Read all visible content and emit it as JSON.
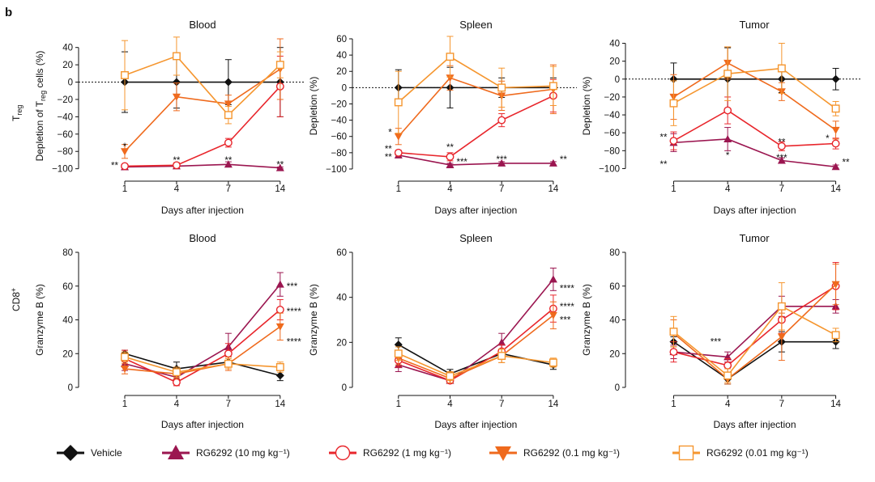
{
  "figure": {
    "panel_label": "b",
    "row_labels": [
      {
        "main": "T",
        "sub": "reg",
        "sup": ""
      },
      {
        "main": "CD8",
        "sub": "",
        "sup": "+"
      }
    ]
  },
  "colors": {
    "Vehicle": "#111111",
    "RG6292 (10 mg kg⁻¹)": "#9b1650",
    "RG6292 (1 mg kg⁻¹)": "#e8262c",
    "RG6292 (0.1 mg kg⁻¹)": "#ef6a1d",
    "RG6292 (0.01 mg kg⁻¹)": "#f5962f"
  },
  "legend": [
    {
      "label": "Vehicle",
      "marker": "diamond"
    },
    {
      "label": "RG6292 (10 mg kg⁻¹)",
      "marker": "triangle-up"
    },
    {
      "label": "RG6292 (1 mg kg⁻¹)",
      "marker": "circle-open"
    },
    {
      "label": "RG6292 (0.1 mg kg⁻¹)",
      "marker": "triangle-down"
    },
    {
      "label": "RG6292 (0.01 mg kg⁻¹)",
      "marker": "square-open"
    }
  ],
  "chart_data": [
    {
      "type": "line",
      "title": "Blood",
      "ylabel": {
        "pre": "Depletion of T",
        "sub": "reg",
        "post": " cells (%)"
      },
      "xlabel": "Days after injection",
      "categories": [
        "1",
        "4",
        "7",
        "14"
      ],
      "ylim": [
        -105,
        50
      ],
      "yticks": [
        40,
        20,
        0,
        -20,
        -40,
        -60,
        -80,
        -100
      ],
      "zero_line": true,
      "series": [
        {
          "name": "Vehicle",
          "values": [
            0,
            0,
            0,
            0
          ],
          "err": [
            35,
            30,
            26,
            40
          ]
        },
        {
          "name": "RG6292 (10 mg kg⁻¹)",
          "values": [
            -98,
            -97,
            -95,
            -99
          ],
          "err": [
            2,
            2,
            3,
            1
          ]
        },
        {
          "name": "RG6292 (1 mg kg⁻¹)",
          "values": [
            -97,
            -96,
            -70,
            -5
          ],
          "err": [
            2,
            3,
            5,
            35
          ]
        },
        {
          "name": "RG6292 (0.1 mg kg⁻¹)",
          "values": [
            -80,
            -17,
            -25,
            15
          ],
          "err": [
            8,
            16,
            10,
            35
          ]
        },
        {
          "name": "RG6292 (0.01 mg kg⁻¹)",
          "values": [
            8,
            30,
            -38,
            20
          ],
          "err": [
            40,
            22,
            10,
            15
          ]
        }
      ],
      "annotations": [
        {
          "text": "*",
          "x": "1",
          "y": -74
        },
        {
          "text": "**",
          "x": "1",
          "y": -96,
          "side": "left"
        },
        {
          "text": "**",
          "x": "4",
          "y": -90
        },
        {
          "text": "**",
          "x": "7",
          "y": -90
        },
        {
          "text": "**",
          "x": "14",
          "y": -95
        }
      ]
    },
    {
      "type": "line",
      "title": "Spleen",
      "ylabel": {
        "pre": "Depletion (%)",
        "sub": "",
        "post": ""
      },
      "xlabel": "Days after injection",
      "categories": [
        "1",
        "4",
        "7",
        "14"
      ],
      "ylim": [
        -105,
        60
      ],
      "yticks": [
        60,
        40,
        20,
        0,
        -20,
        -40,
        -60,
        -80,
        -100
      ],
      "zero_line": true,
      "series": [
        {
          "name": "Vehicle",
          "values": [
            0,
            0,
            0,
            0
          ],
          "err": [
            22,
            25,
            12,
            12
          ]
        },
        {
          "name": "RG6292 (10 mg kg⁻¹)",
          "values": [
            -83,
            -95,
            -93,
            -93
          ],
          "err": [
            3,
            2,
            2,
            2
          ]
        },
        {
          "name": "RG6292 (1 mg kg⁻¹)",
          "values": [
            -80,
            -85,
            -40,
            -10
          ],
          "err": [
            3,
            5,
            8,
            20
          ]
        },
        {
          "name": "RG6292 (0.1 mg kg⁻¹)",
          "values": [
            -60,
            12,
            -10,
            -2
          ],
          "err": [
            10,
            15,
            18,
            30
          ]
        },
        {
          "name": "RG6292 (0.01 mg kg⁻¹)",
          "values": [
            -18,
            38,
            0,
            2
          ],
          "err": [
            38,
            25,
            24,
            24
          ]
        }
      ],
      "annotations": [
        {
          "text": "*",
          "x": "1",
          "y": -55,
          "side": "left"
        },
        {
          "text": "**",
          "x": "1",
          "y": -75,
          "side": "left"
        },
        {
          "text": "**",
          "x": "1",
          "y": -85,
          "side": "left"
        },
        {
          "text": "**",
          "x": "4",
          "y": -73
        },
        {
          "text": "***",
          "x": "4",
          "y": -91,
          "side": "right"
        },
        {
          "text": "***",
          "x": "7",
          "y": -88
        },
        {
          "text": "**",
          "x": "14",
          "y": -88,
          "side": "right"
        }
      ]
    },
    {
      "type": "line",
      "title": "Tumor",
      "ylabel": {
        "pre": "Depletion (%)",
        "sub": "",
        "post": ""
      },
      "xlabel": "Days after injection",
      "categories": [
        "1",
        "4",
        "7",
        "14"
      ],
      "ylim": [
        -105,
        45
      ],
      "yticks": [
        40,
        20,
        0,
        -20,
        -40,
        -60,
        -80,
        -100
      ],
      "zero_line": true,
      "series": [
        {
          "name": "Vehicle",
          "values": [
            0,
            0,
            0,
            0
          ],
          "err": [
            18,
            35,
            15,
            12
          ]
        },
        {
          "name": "RG6292 (10 mg kg⁻¹)",
          "values": [
            -71,
            -67,
            -91,
            -98
          ],
          "err": [
            10,
            13,
            3,
            2
          ]
        },
        {
          "name": "RG6292 (1 mg kg⁻¹)",
          "values": [
            -69,
            -35,
            -75,
            -72
          ],
          "err": [
            10,
            15,
            5,
            6
          ]
        },
        {
          "name": "RG6292 (0.1 mg kg⁻¹)",
          "values": [
            -20,
            18,
            -14,
            -57
          ],
          "err": [
            25,
            18,
            10,
            10
          ]
        },
        {
          "name": "RG6292 (0.01 mg kg⁻¹)",
          "values": [
            -27,
            6,
            12,
            -33
          ],
          "err": [
            25,
            30,
            28,
            8
          ]
        }
      ],
      "annotations": [
        {
          "text": "**",
          "x": "1",
          "y": -65,
          "side": "left"
        },
        {
          "text": "**",
          "x": "1",
          "y": -95,
          "side": "left"
        },
        {
          "text": "*",
          "x": "4",
          "y": -85
        },
        {
          "text": "**",
          "x": "7",
          "y": -70
        },
        {
          "text": "***",
          "x": "7",
          "y": -88
        },
        {
          "text": "*",
          "x": "14",
          "y": -66,
          "side": "left"
        },
        {
          "text": "**",
          "x": "14",
          "y": -93,
          "side": "right"
        }
      ]
    },
    {
      "type": "line",
      "title": "Blood",
      "ylabel": {
        "pre": "Granzyme B (%)",
        "sub": "",
        "post": ""
      },
      "xlabel": "Days after injection",
      "categories": [
        "1",
        "4",
        "7",
        "14"
      ],
      "ylim": [
        0,
        80
      ],
      "yticks": [
        80,
        60,
        40,
        20,
        0
      ],
      "zero_line": false,
      "series": [
        {
          "name": "Vehicle",
          "values": [
            20,
            11,
            15,
            7
          ],
          "err": [
            2,
            4,
            3,
            3
          ]
        },
        {
          "name": "RG6292 (10 mg kg⁻¹)",
          "values": [
            14,
            6,
            24,
            61
          ],
          "err": [
            4,
            3,
            8,
            7
          ]
        },
        {
          "name": "RG6292 (1 mg kg⁻¹)",
          "values": [
            17,
            3,
            20,
            46
          ],
          "err": [
            5,
            2,
            6,
            6
          ]
        },
        {
          "name": "RG6292 (0.1 mg kg⁻¹)",
          "values": [
            11,
            8,
            14,
            36
          ],
          "err": [
            3,
            3,
            4,
            8
          ]
        },
        {
          "name": "RG6292 (0.01 mg kg⁻¹)",
          "values": [
            18,
            9,
            14,
            12
          ],
          "err": [
            3,
            3,
            3,
            3
          ]
        }
      ],
      "annotations": [
        {
          "text": "***",
          "x": "14",
          "y": 60,
          "side": "right"
        },
        {
          "text": "****",
          "x": "14",
          "y": 45,
          "side": "right"
        },
        {
          "text": "****",
          "x": "14",
          "y": 27,
          "side": "right"
        }
      ]
    },
    {
      "type": "line",
      "title": "Spleen",
      "ylabel": {
        "pre": "Granzyme B (%)",
        "sub": "",
        "post": ""
      },
      "xlabel": "Days after injection",
      "categories": [
        "1",
        "4",
        "7",
        "14"
      ],
      "ylim": [
        0,
        60
      ],
      "yticks": [
        60,
        40,
        20,
        0
      ],
      "zero_line": false,
      "series": [
        {
          "name": "Vehicle",
          "values": [
            19,
            6,
            15,
            10
          ],
          "err": [
            3,
            2,
            2,
            2
          ]
        },
        {
          "name": "RG6292 (10 mg kg⁻¹)",
          "values": [
            10,
            3,
            20,
            48
          ],
          "err": [
            3,
            1,
            4,
            5
          ]
        },
        {
          "name": "RG6292 (1 mg kg⁻¹)",
          "values": [
            12,
            3,
            16,
            35
          ],
          "err": [
            3,
            1,
            3,
            6
          ]
        },
        {
          "name": "RG6292 (0.1 mg kg⁻¹)",
          "values": [
            13,
            4,
            14,
            32
          ],
          "err": [
            3,
            2,
            3,
            6
          ]
        },
        {
          "name": "RG6292 (0.01 mg kg⁻¹)",
          "values": [
            15,
            5,
            14,
            11
          ],
          "err": [
            3,
            2,
            3,
            2
          ]
        }
      ],
      "annotations": [
        {
          "text": "****",
          "x": "14",
          "y": 44,
          "side": "right"
        },
        {
          "text": "****",
          "x": "14",
          "y": 36,
          "side": "right"
        },
        {
          "text": "***",
          "x": "14",
          "y": 30,
          "side": "right"
        }
      ]
    },
    {
      "type": "line",
      "title": "Tumor",
      "ylabel": {
        "pre": "Granzyme B (%)",
        "sub": "",
        "post": ""
      },
      "xlabel": "Days after injection",
      "categories": [
        "1",
        "4",
        "7",
        "14"
      ],
      "ylim": [
        0,
        80
      ],
      "yticks": [
        80,
        60,
        40,
        20,
        0
      ],
      "zero_line": false,
      "series": [
        {
          "name": "Vehicle",
          "values": [
            27,
            5,
            27,
            27
          ],
          "err": [
            3,
            3,
            6,
            4
          ]
        },
        {
          "name": "RG6292 (10 mg kg⁻¹)",
          "values": [
            21,
            18,
            48,
            48
          ],
          "err": [
            4,
            3,
            6,
            4
          ]
        },
        {
          "name": "RG6292 (1 mg kg⁻¹)",
          "values": [
            21,
            13,
            40,
            60
          ],
          "err": [
            6,
            4,
            8,
            14
          ]
        },
        {
          "name": "RG6292 (0.1 mg kg⁻¹)",
          "values": [
            32,
            5,
            30,
            61
          ],
          "err": [
            8,
            3,
            14,
            12
          ]
        },
        {
          "name": "RG6292 (0.01 mg kg⁻¹)",
          "values": [
            33,
            7,
            48,
            31
          ],
          "err": [
            9,
            4,
            14,
            4
          ]
        }
      ],
      "annotations": [
        {
          "text": "***",
          "x": "4",
          "y": 27,
          "side": "left"
        }
      ]
    }
  ]
}
